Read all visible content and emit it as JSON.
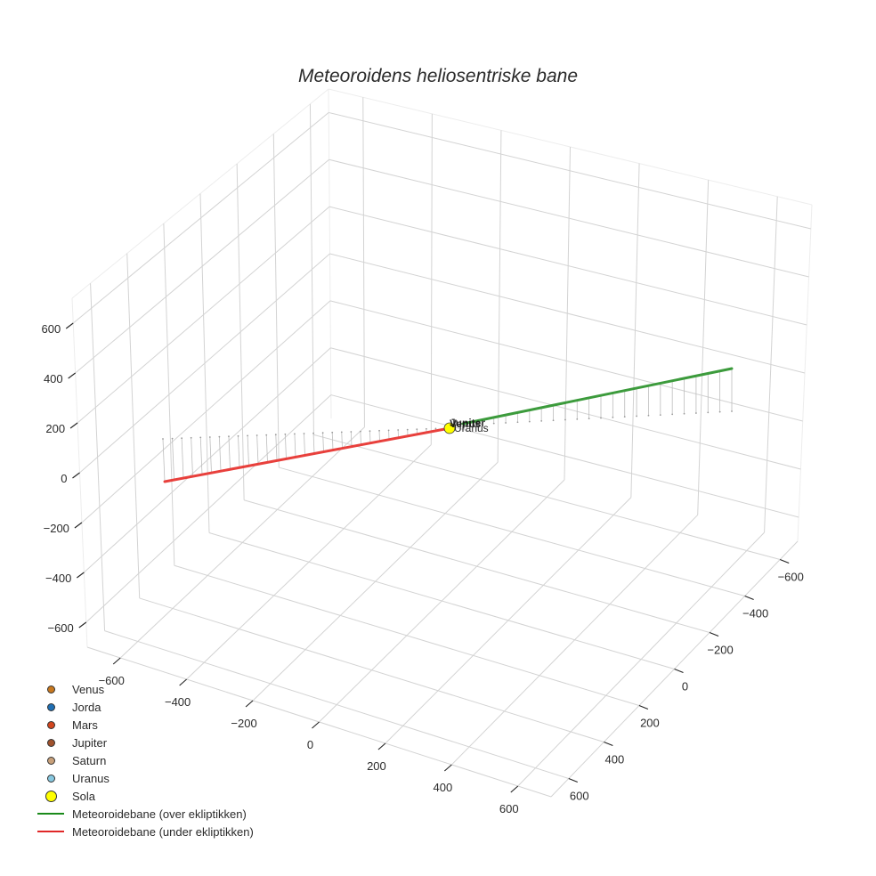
{
  "chart_data": {
    "type": "scatter3d",
    "title": "Meteoroidens heliosentriske bane",
    "axes": {
      "x": {
        "ticks": [
          -600,
          -400,
          -200,
          0,
          200,
          400,
          600
        ],
        "labels": [
          "−600",
          "−400",
          "−200",
          "0",
          "200",
          "400",
          "600"
        ],
        "range": [
          -700,
          700
        ]
      },
      "y": {
        "ticks": [
          -600,
          -400,
          -200,
          0,
          200,
          400,
          600
        ],
        "labels": [
          "−600",
          "−400",
          "−200",
          "0",
          "200",
          "400",
          "600"
        ],
        "range": [
          -700,
          700
        ]
      },
      "z": {
        "ticks": [
          -600,
          -400,
          -200,
          0,
          200,
          400,
          600
        ],
        "labels": [
          "−600",
          "−400",
          "−200",
          "0",
          "200",
          "400",
          "600"
        ],
        "range": [
          -700,
          700
        ]
      }
    },
    "grid": true,
    "legend_position": "bottom-left",
    "series": [
      {
        "name": "Venus",
        "mode": "markers",
        "color": "#c8781e",
        "position": [
          0,
          0,
          0
        ]
      },
      {
        "name": "Jorda",
        "mode": "markers",
        "color": "#1f6fb4",
        "position": [
          0,
          0,
          0
        ]
      },
      {
        "name": "Mars",
        "mode": "markers",
        "color": "#d2461e",
        "position": [
          0,
          0,
          0
        ]
      },
      {
        "name": "Jupiter",
        "mode": "markers",
        "color": "#a0522d",
        "position": [
          0,
          0,
          0
        ]
      },
      {
        "name": "Saturn",
        "mode": "markers",
        "color": "#c8a07a",
        "position": [
          0,
          0,
          0
        ]
      },
      {
        "name": "Uranus",
        "mode": "markers",
        "color": "#87c8e0",
        "position": [
          0,
          0,
          0
        ]
      },
      {
        "name": "Sola",
        "mode": "markers",
        "color": "#ffff00",
        "position": [
          0,
          0,
          0
        ]
      },
      {
        "name": "Meteoroidebane (over ekliptikken)",
        "mode": "lines",
        "color": "#3c9b3c",
        "start_screen": [
          520,
          476
        ],
        "end_screen": [
          822,
          414
        ],
        "z_sign": "positive"
      },
      {
        "name": "Meteoroidebane (under ekliptikken)",
        "mode": "lines",
        "color": "#e8403c",
        "start_screen": [
          505,
          481
        ],
        "end_screen": [
          185,
          541
        ],
        "z_sign": "negative"
      }
    ],
    "annotations": [
      "Venus",
      "Jorda",
      "Mars",
      "Jupiter",
      "Saturn",
      "Uranus"
    ]
  },
  "title": "Meteoroidens heliosentriske bane",
  "axes_labels": {
    "z": [
      "600",
      "400",
      "200",
      "0",
      "−200",
      "−400",
      "−600"
    ],
    "x": [
      "−600",
      "−400",
      "−200",
      "0",
      "200",
      "400",
      "600"
    ],
    "y": [
      "−600",
      "−400",
      "−200",
      "0",
      "200",
      "400",
      "600"
    ]
  },
  "sun_label": "Uranus",
  "legend": {
    "items": [
      {
        "label": "Venus",
        "type": "dot",
        "color": "#c8781e",
        "size": 9
      },
      {
        "label": "Jorda",
        "type": "dot",
        "color": "#1f6fb4",
        "size": 9
      },
      {
        "label": "Mars",
        "type": "dot",
        "color": "#d2461e",
        "size": 9
      },
      {
        "label": "Jupiter",
        "type": "dot",
        "color": "#a0522d",
        "size": 9
      },
      {
        "label": "Saturn",
        "type": "dot",
        "color": "#c8a07a",
        "size": 9
      },
      {
        "label": "Uranus",
        "type": "dot",
        "color": "#87c8e0",
        "size": 9
      },
      {
        "label": "Sola",
        "type": "dot",
        "color": "#ffff00",
        "size": 13
      },
      {
        "label": "Meteoroidebane (over ekliptikken)",
        "type": "line",
        "color": "#1a8a1a"
      },
      {
        "label": "Meteoroidebane (under ekliptikken)",
        "type": "line",
        "color": "#e02828"
      }
    ]
  }
}
